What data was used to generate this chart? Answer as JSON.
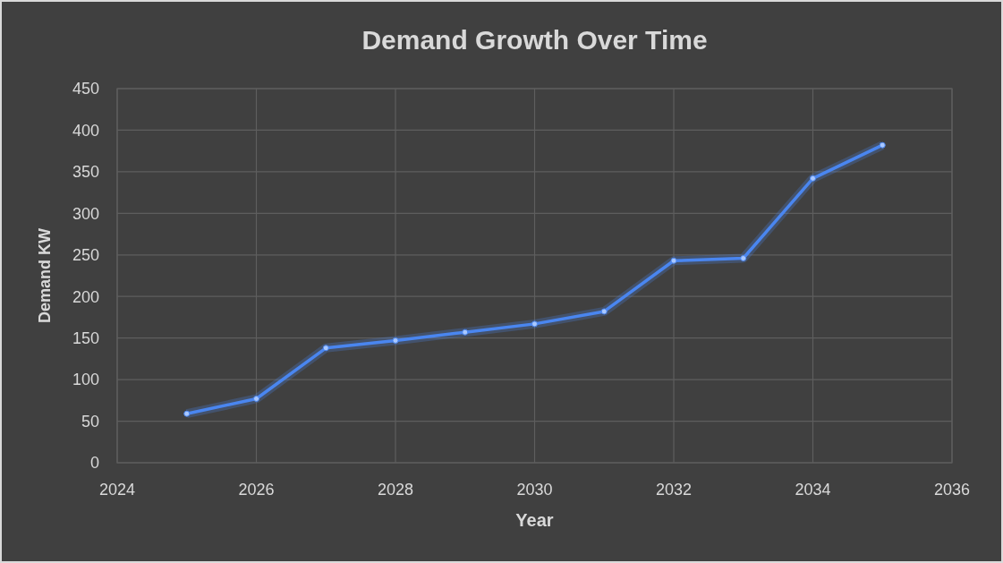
{
  "chart_data": {
    "type": "line",
    "title": "Demand Growth Over Time",
    "xlabel": "Year",
    "ylabel": "Demand KW",
    "x": [
      2025,
      2026,
      2027,
      2028,
      2029,
      2030,
      2031,
      2032,
      2033,
      2034,
      2035
    ],
    "series": [
      {
        "color": "#4a86f0",
        "values": [
          59,
          77,
          138,
          147,
          157,
          167,
          182,
          243,
          246,
          342,
          382
        ]
      }
    ],
    "xlim": [
      2024,
      2036
    ],
    "xticks": [
      2024,
      2026,
      2028,
      2030,
      2032,
      2034,
      2036
    ],
    "ylim": [
      0,
      450
    ],
    "yticks": [
      0,
      50,
      100,
      150,
      200,
      250,
      300,
      350,
      400,
      450
    ],
    "grid": true,
    "marker": "circle",
    "line_style": "solid"
  }
}
